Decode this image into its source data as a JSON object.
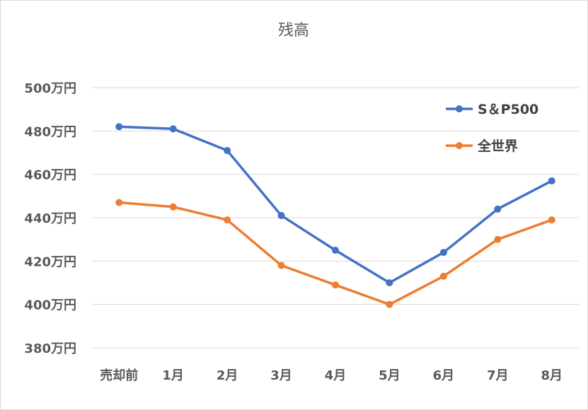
{
  "chart_data": {
    "type": "line",
    "title": "残高",
    "categories": [
      "売却前",
      "1月",
      "2月",
      "3月",
      "4月",
      "5月",
      "6月",
      "7月",
      "8月"
    ],
    "series": [
      {
        "name": "S＆P500",
        "color": "#4472C4",
        "values": [
          482,
          481,
          471,
          441,
          425,
          410,
          424,
          444,
          457
        ]
      },
      {
        "name": "全世界",
        "color": "#ED7D31",
        "values": [
          447,
          445,
          439,
          418,
          409,
          400,
          413,
          430,
          439
        ]
      }
    ],
    "y_ticks": [
      {
        "value": 380,
        "label": "380万円"
      },
      {
        "value": 400,
        "label": "400万円"
      },
      {
        "value": 420,
        "label": "420万円"
      },
      {
        "value": 440,
        "label": "440万円"
      },
      {
        "value": 460,
        "label": "460万円"
      },
      {
        "value": 480,
        "label": "480万円"
      },
      {
        "value": 500,
        "label": "500万円"
      }
    ],
    "ylim": [
      380,
      500
    ],
    "xlabel": "",
    "ylabel": "",
    "grid": true,
    "legend_position": "top-right"
  }
}
